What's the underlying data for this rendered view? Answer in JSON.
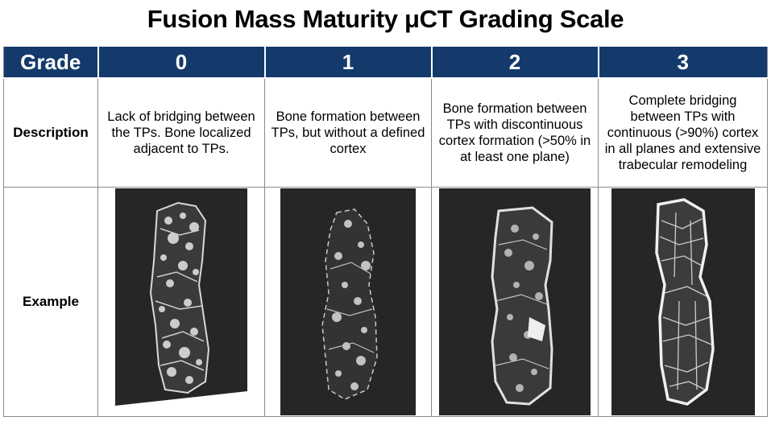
{
  "title": "Fusion Mass Maturity μCT Grading Scale",
  "header": {
    "grade_label": "Grade",
    "grades": [
      "0",
      "1",
      "2",
      "3"
    ]
  },
  "rows": {
    "description_label": "Description",
    "example_label": "Example"
  },
  "descriptions": [
    "Lack of bridging between the TPs. Bone localized adjacent to TPs.",
    "Bone formation between TPs, but without a defined cortex",
    "Bone formation between TPs with discontinuous cortex formation (>50% in at least one plane)",
    "Complete bridging between TPs with continuous (>90%) cortex in all planes and extensive trabecular remodeling"
  ],
  "colors": {
    "header_bg": "#143a6b",
    "header_text": "#ffffff",
    "grid": "#8a8a8a",
    "ct_bg": "#262626",
    "bone": "#e6e6e6"
  },
  "icons": [
    "ct-scan-grade-0-image",
    "ct-scan-grade-1-image",
    "ct-scan-grade-2-image",
    "ct-scan-grade-3-image"
  ]
}
